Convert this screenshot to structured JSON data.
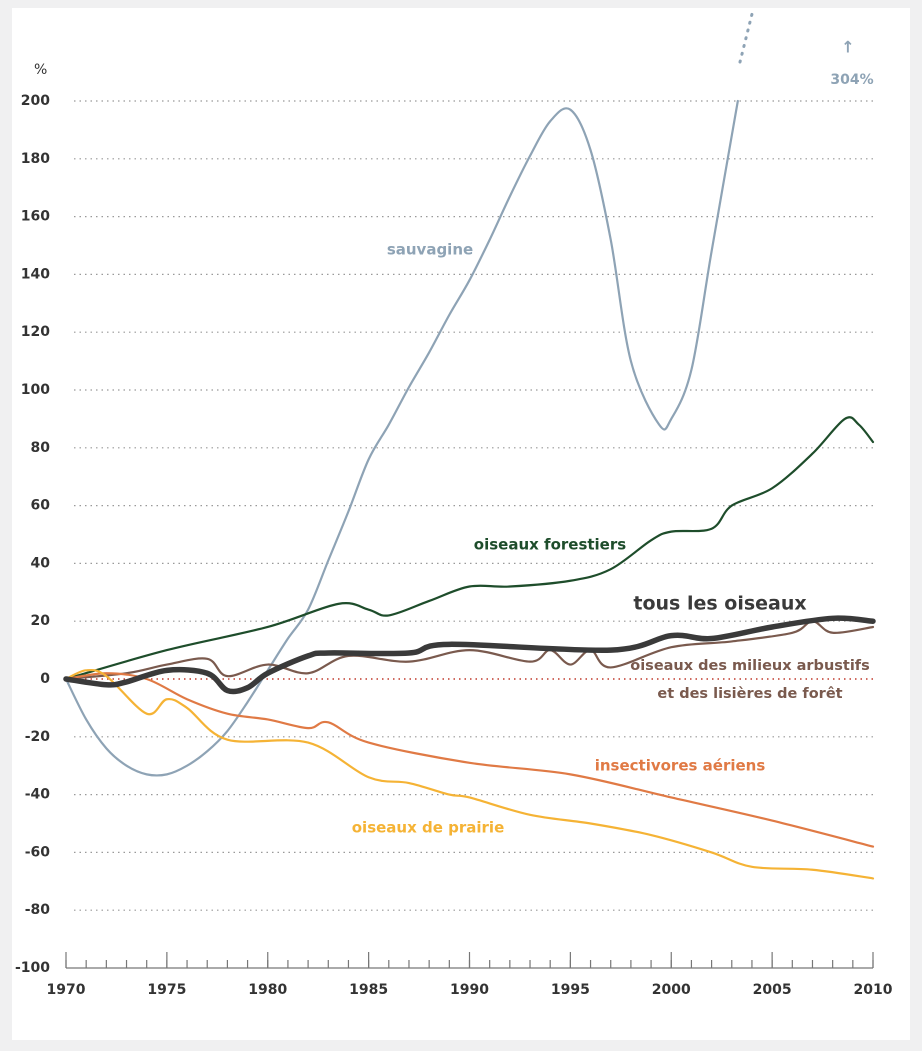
{
  "chart_data": {
    "type": "line",
    "ylabel": "%",
    "xlim": [
      1970,
      2010
    ],
    "xticks": [
      1970,
      1975,
      1980,
      1985,
      1990,
      1995,
      2000,
      2005,
      2010
    ],
    "ylim": [
      -100,
      200
    ],
    "yticks": [
      -100,
      -80,
      -60,
      -40,
      -20,
      0,
      20,
      40,
      60,
      80,
      100,
      120,
      140,
      160,
      180,
      200
    ],
    "grid": true,
    "annotation": {
      "arrow": "↑",
      "text": "304%"
    },
    "series": [
      {
        "name": "sauvagine",
        "color": "#8ea3b5",
        "x": [
          1970,
          1971,
          1972,
          1973,
          1974,
          1975,
          1976,
          1977,
          1978,
          1979,
          1980,
          1981,
          1982,
          1983,
          1984,
          1985,
          1986,
          1987,
          1988,
          1989,
          1990,
          1991,
          1992,
          1993,
          1994,
          1995,
          1996,
          1997,
          1998,
          1999.4,
          2000,
          2001,
          2002,
          2003.3
        ],
        "values": [
          0,
          -14,
          -24,
          -30,
          -33,
          -33,
          -30,
          -25,
          -18,
          -8,
          3,
          14,
          24,
          41,
          58,
          76,
          88,
          101,
          113,
          126,
          138,
          152,
          167,
          181,
          193,
          197,
          183,
          152,
          110,
          88,
          90,
          107,
          148,
          200
        ]
      },
      {
        "name": "oiseaux forestiers",
        "color": "#1e4d2b",
        "x": [
          1970,
          1975,
          1980,
          1983.5,
          1985,
          1986,
          1988,
          1990,
          1992,
          1995,
          1997,
          1999,
          2000,
          2002,
          2003,
          2005,
          2007,
          2008.6,
          2009.3,
          2010
        ],
        "values": [
          0,
          10,
          18,
          26,
          24,
          22,
          27,
          32,
          32,
          34,
          38,
          48,
          51,
          52,
          60,
          66,
          78,
          90,
          88,
          82
        ]
      },
      {
        "name": "tous les oiseaux",
        "color": "#3a3a3a",
        "x": [
          1970,
          1972,
          1973,
          1975,
          1977,
          1978,
          1979,
          1980,
          1982,
          1983,
          1987,
          1989,
          1997,
          2000,
          2002,
          2005,
          2008,
          2010
        ],
        "values": [
          0,
          -2,
          -1,
          3,
          2,
          -4,
          -3,
          2,
          8,
          9,
          9,
          12,
          10,
          15,
          14,
          18,
          21,
          20
        ]
      },
      {
        "name": [
          "oiseaux des milieux arbustifs",
          "et des lisières de forêt"
        ],
        "color": "#7a5a4e",
        "x": [
          1970,
          1973,
          1975,
          1977,
          1978,
          1980,
          1982,
          1984,
          1987,
          1990,
          1993,
          1994,
          1995,
          1996,
          1997,
          2000,
          2003,
          2006,
          2007,
          2008,
          2010
        ],
        "values": [
          0,
          2,
          5,
          7,
          1,
          5,
          2,
          8,
          6,
          10,
          6,
          10,
          5,
          10,
          4,
          11,
          13,
          16,
          20,
          16,
          18
        ]
      },
      {
        "name": "insectivores aériens",
        "color": "#e07a45",
        "x": [
          1970,
          1972,
          1974,
          1976,
          1978,
          1980,
          1982,
          1983,
          1985,
          1990,
          1995,
          2000,
          2005,
          2010
        ],
        "values": [
          0,
          2,
          0,
          -7,
          -12,
          -14,
          -17,
          -15,
          -22,
          -29,
          -33,
          -41,
          -49,
          -58
        ]
      },
      {
        "name": "oiseaux de prairie",
        "color": "#f5b335",
        "x": [
          1970,
          1971,
          1972,
          1974,
          1975,
          1976,
          1978,
          1982,
          1985,
          1987,
          1989,
          1990,
          1993,
          1996,
          1999,
          2002,
          2004,
          2007,
          2010
        ],
        "values": [
          0,
          3,
          1,
          -12,
          -7,
          -10,
          -21,
          -22,
          -34,
          -36,
          -40,
          -41,
          -47,
          -50,
          -54,
          -60,
          -65,
          -66,
          -69
        ]
      }
    ]
  }
}
